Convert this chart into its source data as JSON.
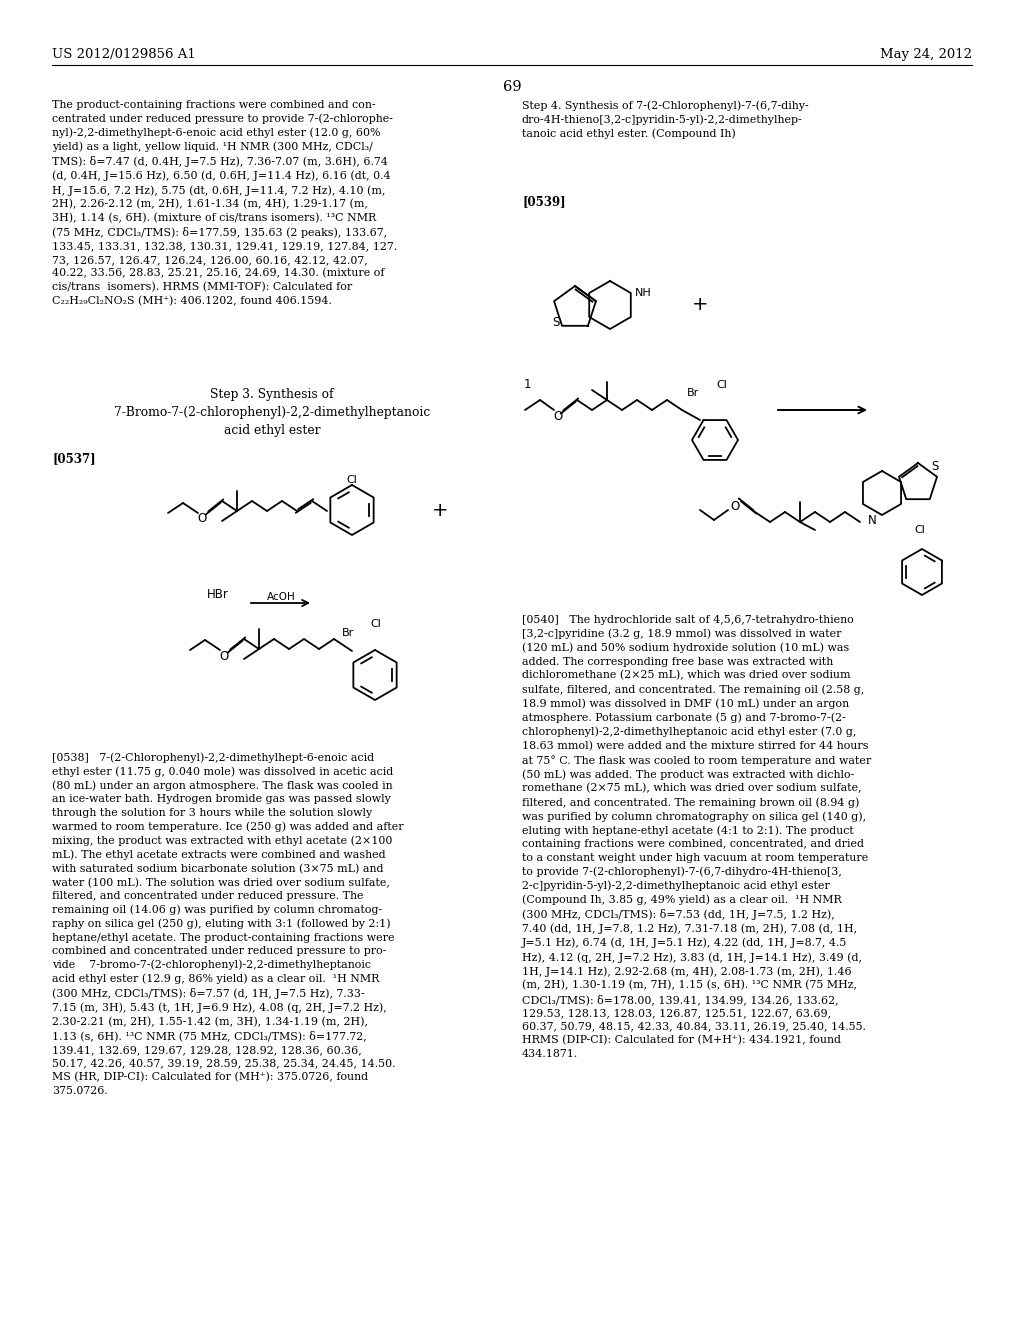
{
  "background_color": "#ffffff",
  "header_left": "US 2012/0129856 A1",
  "header_right": "May 24, 2012",
  "page_number": "69",
  "left_col_text1": "The product-containing fractions were combined and con-\ncentrated under reduced pressure to provide 7-(2-chlorophe-\nnyl)-2,2-dimethylhept-6-enoic acid ethyl ester (12.0 g, 60%\nyield) as a light, yellow liquid. ¹H NMR (300 MHz, CDCl₃/\nTMS): δ=7.47 (d, 0.4H, J=7.5 Hz), 7.36-7.07 (m, 3.6H), 6.74\n(d, 0.4H, J=15.6 Hz), 6.50 (d, 0.6H, J=11.4 Hz), 6.16 (dt, 0.4\nH, J=15.6, 7.2 Hz), 5.75 (dt, 0.6H, J=11.4, 7.2 Hz), 4.10 (m,\n2H), 2.26-2.12 (m, 2H), 1.61-1.34 (m, 4H), 1.29-1.17 (m,\n3H), 1.14 (s, 6H). (mixture of cis/trans isomers). ¹³C NMR\n(75 MHz, CDCl₃/TMS): δ=177.59, 135.63 (2 peaks), 133.67,\n133.45, 133.31, 132.38, 130.31, 129.41, 129.19, 127.84, 127.\n73, 126.57, 126.47, 126.24, 126.00, 60.16, 42.12, 42.07,\n40.22, 33.56, 28.83, 25.21, 25.16, 24.69, 14.30. (mixture of\ncis/trans  isomers). HRMS (MMI-TOF): Calculated for\nC₂₂H₂₉Cl₂NO₂S (MH⁺): 406.1202, found 406.1594.",
  "step3_title": "Step 3. Synthesis of\n7-Bromo-7-(2-chlorophenyl)-2,2-dimethylheptanoic\nacid ethyl ester",
  "step4_title": "Step 4. Synthesis of 7-(2-Chlorophenyl)-7-(6,7-dihy-\ndro-4H-thieno[3,2-c]pyridin-5-yl)-2,2-dimethylhep-\ntanoic acid ethyl ester. (Compound Ih)",
  "text_0538": "[0538]   7-(2-Chlorophenyl)-2,2-dimethylhept-6-enoic acid\nethyl ester (11.75 g, 0.040 mole) was dissolved in acetic acid\n(80 mL) under an argon atmosphere. The flask was cooled in\nan ice-water bath. Hydrogen bromide gas was passed slowly\nthrough the solution for 3 hours while the solution slowly\nwarmed to room temperature. Ice (250 g) was added and after\nmixing, the product was extracted with ethyl acetate (2×100\nmL). The ethyl acetate extracts were combined and washed\nwith saturated sodium bicarbonate solution (3×75 mL) and\nwater (100 mL). The solution was dried over sodium sulfate,\nfiltered, and concentrated under reduced pressure. The\nremaining oil (14.06 g) was purified by column chromatog-\nraphy on silica gel (250 g), eluting with 3:1 (followed by 2:1)\nheptane/ethyl acetate. The product-containing fractions were\ncombined and concentrated under reduced pressure to pro-\nvide    7-bromo-7-(2-chlorophenyl)-2,2-dimethylheptanoic\nacid ethyl ester (12.9 g, 86% yield) as a clear oil.  ¹H NMR\n(300 MHz, CDCl₃/TMS): δ=7.57 (d, 1H, J=7.5 Hz), 7.33-\n7.15 (m, 3H), 5.43 (t, 1H, J=6.9 Hz), 4.08 (q, 2H, J=7.2 Hz),\n2.30-2.21 (m, 2H), 1.55-1.42 (m, 3H), 1.34-1.19 (m, 2H),\n1.13 (s, 6H). ¹³C NMR (75 MHz, CDCl₃/TMS): δ=177.72,\n139.41, 132.69, 129.67, 129.28, 128.92, 128.36, 60.36,\n50.17, 42.26, 40.57, 39.19, 28.59, 25.38, 25.34, 24.45, 14.50.\nMS (HR, DIP-CI): Calculated for (MH⁺): 375.0726, found\n375.0726.",
  "text_0540": "[0540]   The hydrochloride salt of 4,5,6,7-tetrahydro-thieno\n[3,2-c]pyridine (3.2 g, 18.9 mmol) was dissolved in water\n(120 mL) and 50% sodium hydroxide solution (10 mL) was\nadded. The corresponding free base was extracted with\ndichloromethane (2×25 mL), which was dried over sodium\nsulfate, filtered, and concentrated. The remaining oil (2.58 g,\n18.9 mmol) was dissolved in DMF (10 mL) under an argon\natmosphere. Potassium carbonate (5 g) and 7-bromo-7-(2-\nchlorophenyl)-2,2-dimethylheptanoic acid ethyl ester (7.0 g,\n18.63 mmol) were added and the mixture stirred for 44 hours\nat 75° C. The flask was cooled to room temperature and water\n(50 mL) was added. The product was extracted with dichlo-\nromethane (2×75 mL), which was dried over sodium sulfate,\nfiltered, and concentrated. The remaining brown oil (8.94 g)\nwas purified by column chromatography on silica gel (140 g),\neluting with heptane-ethyl acetate (4:1 to 2:1). The product\ncontaining fractions were combined, concentrated, and dried\nto a constant weight under high vacuum at room temperature\nto provide 7-(2-chlorophenyl)-7-(6,7-dihydro-4H-thieno[3,\n2-c]pyridin-5-yl)-2,2-dimethylheptanoic acid ethyl ester\n(Compound Ih, 3.85 g, 49% yield) as a clear oil.  ¹H NMR\n(300 MHz, CDCl₃/TMS): δ=7.53 (dd, 1H, J=7.5, 1.2 Hz),\n7.40 (dd, 1H, J=7.8, 1.2 Hz), 7.31-7.18 (m, 2H), 7.08 (d, 1H,\nJ=5.1 Hz), 6.74 (d, 1H, J=5.1 Hz), 4.22 (dd, 1H, J=8.7, 4.5\nHz), 4.12 (q, 2H, J=7.2 Hz), 3.83 (d, 1H, J=14.1 Hz), 3.49 (d,\n1H, J=14.1 Hz), 2.92-2.68 (m, 4H), 2.08-1.73 (m, 2H), 1.46\n(m, 2H), 1.30-1.19 (m, 7H), 1.15 (s, 6H). ¹³C NMR (75 MHz,\nCDCl₃/TMS): δ=178.00, 139.41, 134.99, 134.26, 133.62,\n129.53, 128.13, 128.03, 126.87, 125.51, 122.67, 63.69,\n60.37, 50.79, 48.15, 42.33, 40.84, 33.11, 26.19, 25.40, 14.55.\nHRMS (DIP-CI): Calculated for (M+H⁺): 434.1921, found\n434.1871."
}
